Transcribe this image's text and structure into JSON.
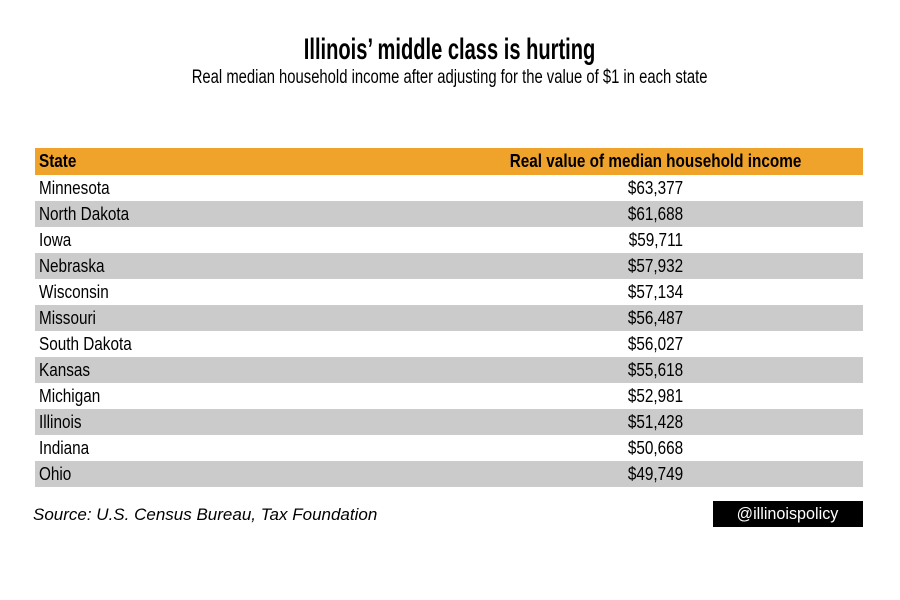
{
  "title": "Illinois’ middle class is hurting",
  "subtitle": "Real median household income after adjusting for the value of $1 in each state",
  "table": {
    "header": {
      "state": "State",
      "value": "Real value of median household income"
    },
    "rows": [
      {
        "state": "Minnesota",
        "value": "$63,377"
      },
      {
        "state": "North Dakota",
        "value": "$61,688"
      },
      {
        "state": "Iowa",
        "value": "$59,711"
      },
      {
        "state": "Nebraska",
        "value": "$57,932"
      },
      {
        "state": "Wisconsin",
        "value": "$57,134"
      },
      {
        "state": "Missouri",
        "value": "$56,487"
      },
      {
        "state": "South Dakota",
        "value": "$56,027"
      },
      {
        "state": "Kansas",
        "value": "$55,618"
      },
      {
        "state": "Michigan",
        "value": "$52,981"
      },
      {
        "state": "Illinois",
        "value": "$51,428"
      },
      {
        "state": "Indiana",
        "value": "$50,668"
      },
      {
        "state": "Ohio",
        "value": "$49,749"
      }
    ]
  },
  "footer": {
    "source": "Source: U.S. Census Bureau, Tax Foundation",
    "badge": "@illinoispolicy"
  },
  "colors": {
    "header_bg": "#F0A32B",
    "row_alt_bg": "#CBCBCB",
    "row_bg": "#FFFFFF",
    "badge_bg": "#000000",
    "badge_text": "#FFFFFF",
    "text": "#000000",
    "background": "#FFFFFF"
  },
  "chart_data": {
    "type": "table",
    "title": "Illinois’ middle class is hurting",
    "subtitle": "Real median household income after adjusting for the value of $1 in each state",
    "columns": [
      "State",
      "Real value of median household income"
    ],
    "categories": [
      "Minnesota",
      "North Dakota",
      "Iowa",
      "Nebraska",
      "Wisconsin",
      "Missouri",
      "South Dakota",
      "Kansas",
      "Michigan",
      "Illinois",
      "Indiana",
      "Ohio"
    ],
    "values": [
      63377,
      61688,
      59711,
      57932,
      57134,
      56487,
      56027,
      55618,
      52981,
      51428,
      50668,
      49749
    ],
    "display_values": [
      "$63,377",
      "$61,688",
      "$59,711",
      "$57,932",
      "$57,134",
      "$56,487",
      "$56,027",
      "$55,618",
      "$52,981",
      "$51,428",
      "$50,668",
      "$49,749"
    ],
    "source": "Source: U.S. Census Bureau, Tax Foundation",
    "layout": {
      "zebra_striping": true,
      "header_color": "#F0A32B",
      "alt_row_color": "#CBCBCB"
    }
  }
}
